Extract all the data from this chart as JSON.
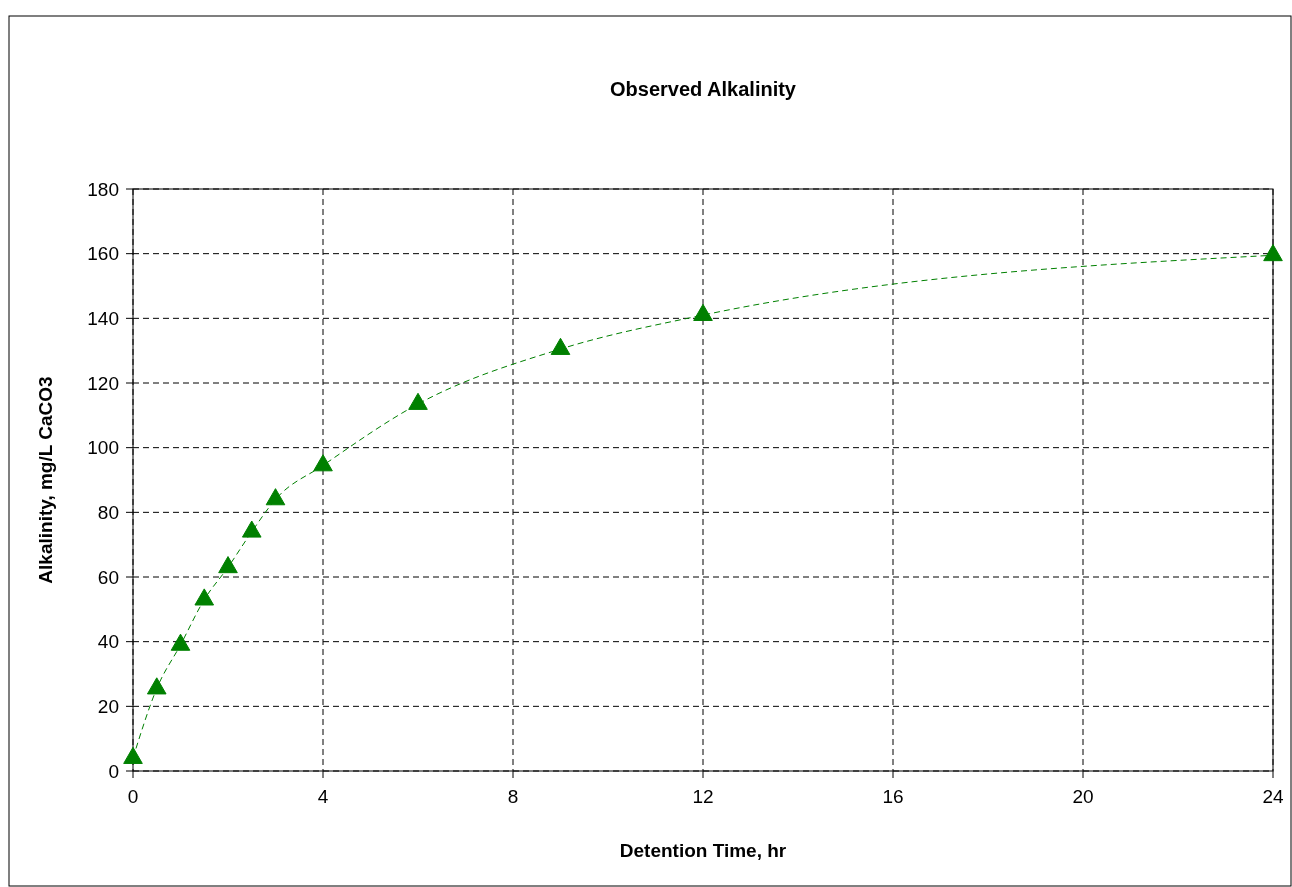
{
  "chart_data": {
    "type": "line",
    "title": "Observed Alkalinity",
    "xlabel": "Detention Time, hr",
    "ylabel": "Alkalinity, mg/L CaCO3",
    "x": [
      0,
      0.5,
      1,
      1.5,
      2,
      2.5,
      3,
      4,
      6,
      9,
      12,
      24
    ],
    "series": [
      {
        "color": "#008000",
        "values": [
          4,
          25.5,
          39,
          53,
          63,
          74,
          84,
          94.5,
          113.5,
          130.5,
          141,
          159.5
        ]
      }
    ],
    "xlim": [
      0,
      24
    ],
    "xticks": [
      0,
      4,
      8,
      12,
      16,
      20,
      24
    ],
    "ylim": [
      0,
      180
    ],
    "yticks": [
      0,
      20,
      40,
      60,
      80,
      100,
      120,
      140,
      160,
      180
    ],
    "grid": true,
    "marker": "triangle",
    "line_style": "dashed"
  }
}
